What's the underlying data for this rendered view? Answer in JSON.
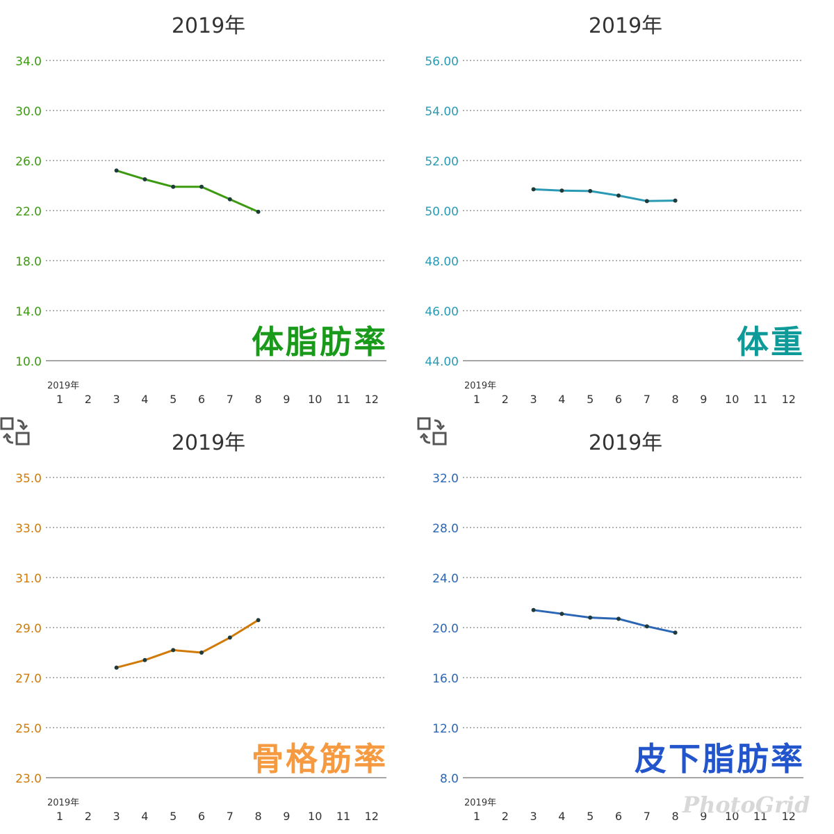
{
  "chart_data": [
    {
      "type": "line",
      "title": "2019年",
      "label": "体脂肪率",
      "color": "#3c9a10",
      "label_color": "#1a9a1a",
      "year_label": "2019年",
      "x_ticks": [
        "1",
        "2",
        "3",
        "4",
        "5",
        "6",
        "7",
        "8",
        "9",
        "10",
        "11",
        "12"
      ],
      "y_ticks": [
        "34.0",
        "30.0",
        "26.0",
        "22.0",
        "18.0",
        "14.0",
        "10.0"
      ],
      "ylim": [
        10,
        34
      ],
      "grid": true,
      "show_swap_icon": false,
      "x": [
        3,
        4,
        5,
        6,
        7,
        8
      ],
      "y": [
        25.2,
        24.5,
        23.9,
        23.9,
        22.9,
        21.9
      ]
    },
    {
      "type": "line",
      "title": "2019年",
      "label": "体重",
      "color": "#2a9ab4",
      "label_color": "#0d9a98",
      "year_label": "2019年",
      "x_ticks": [
        "1",
        "2",
        "3",
        "4",
        "5",
        "6",
        "7",
        "8",
        "9",
        "10",
        "11",
        "12"
      ],
      "y_ticks": [
        "56.00",
        "54.00",
        "52.00",
        "50.00",
        "48.00",
        "46.00",
        "44.00"
      ],
      "ylim": [
        44,
        56
      ],
      "grid": true,
      "show_swap_icon": false,
      "x": [
        3,
        4,
        5,
        6,
        7,
        8
      ],
      "y": [
        50.85,
        50.8,
        50.78,
        50.6,
        50.38,
        50.4
      ]
    },
    {
      "type": "line",
      "title": "2019年",
      "label": "骨格筋率",
      "color": "#d07a08",
      "label_color": "#f59a40",
      "year_label": "2019年",
      "x_ticks": [
        "1",
        "2",
        "3",
        "4",
        "5",
        "6",
        "7",
        "8",
        "9",
        "10",
        "11",
        "12"
      ],
      "y_ticks": [
        "35.0",
        "33.0",
        "31.0",
        "29.0",
        "27.0",
        "25.0",
        "23.0"
      ],
      "ylim": [
        23,
        35
      ],
      "grid": true,
      "show_swap_icon": true,
      "x": [
        3,
        4,
        5,
        6,
        7,
        8
      ],
      "y": [
        27.4,
        27.7,
        28.1,
        28.0,
        28.6,
        29.3
      ]
    },
    {
      "type": "line",
      "title": "2019年",
      "label": "皮下脂肪率",
      "color": "#2a66b4",
      "label_color": "#2255cc",
      "year_label": "2019年",
      "x_ticks": [
        "1",
        "2",
        "3",
        "4",
        "5",
        "6",
        "7",
        "8",
        "9",
        "10",
        "11",
        "12"
      ],
      "y_ticks": [
        "32.0",
        "28.0",
        "24.0",
        "20.0",
        "16.0",
        "12.0",
        "8.0"
      ],
      "ylim": [
        8,
        32
      ],
      "grid": true,
      "show_swap_icon": true,
      "x": [
        3,
        4,
        5,
        6,
        7,
        8
      ],
      "y": [
        21.4,
        21.1,
        20.8,
        20.7,
        20.1,
        19.6
      ]
    }
  ],
  "icons": {
    "swap": "swap-layout-icon"
  },
  "watermark": "PhotoGrid"
}
